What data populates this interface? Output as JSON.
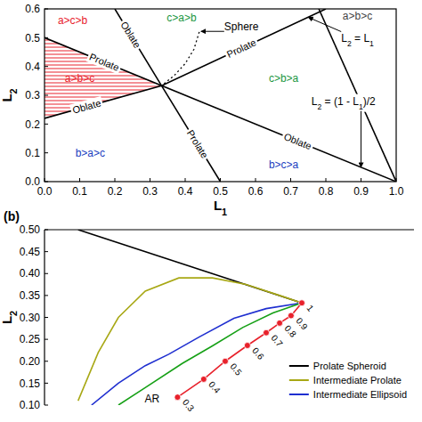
{
  "chart_data": [
    {
      "type": "line",
      "xlabel": "L1",
      "ylabel": "L2",
      "xlim": [
        0,
        1
      ],
      "ylim": [
        0,
        0.6
      ],
      "xticks": [
        {
          "value": 0,
          "label": "0.0"
        },
        0.1,
        0.2,
        0.3,
        0.4,
        0.5,
        0.6,
        0.7,
        0.8,
        0.9,
        {
          "value": 1,
          "label": "1.0"
        }
      ],
      "yticks": [
        {
          "value": 0,
          "label": "0.0"
        },
        0.1,
        0.2,
        0.3,
        0.4,
        0.5,
        0.6
      ],
      "series": [
        {
          "color": "#000000",
          "x": [
            0,
            1
          ],
          "values": [
            0.5,
            0
          ]
        },
        {
          "color": "#000000",
          "x": [
            0,
            0.333,
            0.8
          ],
          "values": [
            0.22,
            0.333,
            0.6
          ]
        },
        {
          "color": "#000000",
          "x": [
            0.2,
            0.333,
            0.5
          ],
          "values": [
            0.6,
            0.333,
            0
          ]
        },
        {
          "color": "#000000",
          "x": [
            0.78,
            1
          ],
          "values": [
            0.6,
            0
          ]
        },
        {
          "type": "hatch",
          "color": "#e8212b",
          "x": [
            0,
            0.333,
            0
          ],
          "values": [
            0.5,
            0.333,
            0.22
          ]
        },
        {
          "color": "#000000",
          "line_style": "dotted",
          "x": [
            0.44,
            0.425,
            0.4,
            0.37,
            0.333
          ],
          "values": [
            0.52,
            0.46,
            0.41,
            0.37,
            0.333
          ]
        }
      ],
      "annotations": [
        {
          "text": "a>c>b",
          "x": 0.08,
          "y": 0.56,
          "color": "#e8212b"
        },
        {
          "text": "c>a>b",
          "x": 0.39,
          "y": 0.57,
          "color": "#1a9641"
        },
        {
          "text": "Sphere",
          "x": 0.56,
          "y": 0.54,
          "color": "#000000",
          "arrow": [
            0.445,
            0.522
          ]
        },
        {
          "text": "L2 = L1",
          "x": 0.89,
          "y": 0.5,
          "color": "#000000",
          "arrow": [
            0.75,
            0.571
          ]
        },
        {
          "text": "a>b>c",
          "x": 0.89,
          "y": 0.575,
          "color": "#444444"
        },
        {
          "text": "Prolate",
          "x": 0.17,
          "y": 0.415,
          "color": "#000000"
        },
        {
          "text": "a>b>c",
          "x": 0.1,
          "y": 0.36,
          "color": "#e8212b"
        },
        {
          "text": "Oblate",
          "x": 0.12,
          "y": 0.2607,
          "color": "#000000"
        },
        {
          "text": "b>a>c",
          "x": 0.13,
          "y": 0.1,
          "color": "#2040c0"
        },
        {
          "text": "Oblate",
          "x": 0.245,
          "y": 0.51,
          "color": "#000000"
        },
        {
          "text": "Prolate",
          "x": 0.56,
          "y": 0.463,
          "color": "#000000"
        },
        {
          "text": "c>b>a",
          "x": 0.68,
          "y": 0.36,
          "color": "#1a9641"
        },
        {
          "text": "Prolate",
          "x": 0.435,
          "y": 0.13,
          "color": "#000000"
        },
        {
          "text": "Oblate",
          "x": 0.72,
          "y": 0.14,
          "color": "#000000"
        },
        {
          "text": "b>c>a",
          "x": 0.68,
          "y": 0.06,
          "color": "#2040c0"
        },
        {
          "text": "L2 = (1 - L1)/2",
          "x": 0.85,
          "y": 0.28,
          "color": "#000000",
          "arrow": [
            0.9,
            0.05
          ]
        }
      ]
    },
    {
      "type": "line",
      "title": "(b)",
      "ylabel": "L2",
      "xlim": [
        -0.05,
        0.5
      ],
      "ylim": [
        0.1,
        0.5
      ],
      "yticks": [
        {
          "value": 0.1,
          "label": "0.10"
        },
        0.15,
        {
          "value": 0.2,
          "label": "0.20"
        },
        0.25,
        {
          "value": 0.3,
          "label": "0.30"
        },
        0.35,
        {
          "value": 0.4,
          "label": "0.40"
        },
        0.45,
        {
          "value": 0.5,
          "label": "0.50"
        }
      ],
      "tick_labels": "y",
      "legend": "lower right",
      "series": [
        {
          "name": "Prolate Spheroid",
          "color": "#000000",
          "x": [
            0,
            0.333
          ],
          "values": [
            0.5,
            0.333
          ]
        },
        {
          "name": "Intermediate Prolate",
          "color": "#a8a815",
          "x": [
            0,
            0.03,
            0.06,
            0.1,
            0.15,
            0.2,
            0.25,
            0.3,
            0.333
          ],
          "values": [
            0.11,
            0.22,
            0.3,
            0.36,
            0.39,
            0.39,
            0.375,
            0.35,
            0.333
          ]
        },
        {
          "name": "Intermediate Ellipsoid",
          "color": "#1f2fd0",
          "x": [
            0.02,
            0.06,
            0.1,
            0.135,
            0.18,
            0.232,
            0.28,
            0.333
          ],
          "values": [
            0.1,
            0.15,
            0.19,
            0.216,
            0.255,
            0.298,
            0.32,
            0.333
          ]
        },
        {
          "color": "#16a016",
          "x": [
            0.06,
            0.1,
            0.155,
            0.2,
            0.245,
            0.29,
            0.333
          ],
          "values": [
            0.1,
            0.14,
            0.195,
            0.235,
            0.277,
            0.31,
            0.333
          ]
        },
        {
          "color": "#e8212b",
          "marker": "circle",
          "x": [
            0.148,
            0.187,
            0.219,
            0.252,
            0.28,
            0.3,
            0.317,
            0.333
          ],
          "values": [
            0.118,
            0.159,
            0.2,
            0.236,
            0.265,
            0.287,
            0.304,
            0.333
          ],
          "ar_values": [
            0.3,
            0.4,
            0.5,
            0.6,
            0.7,
            0.8,
            0.9,
            1
          ]
        }
      ],
      "annotations": [
        {
          "text": "AR",
          "x": 0.11,
          "y": 0.115,
          "color": "#000000"
        }
      ]
    }
  ]
}
